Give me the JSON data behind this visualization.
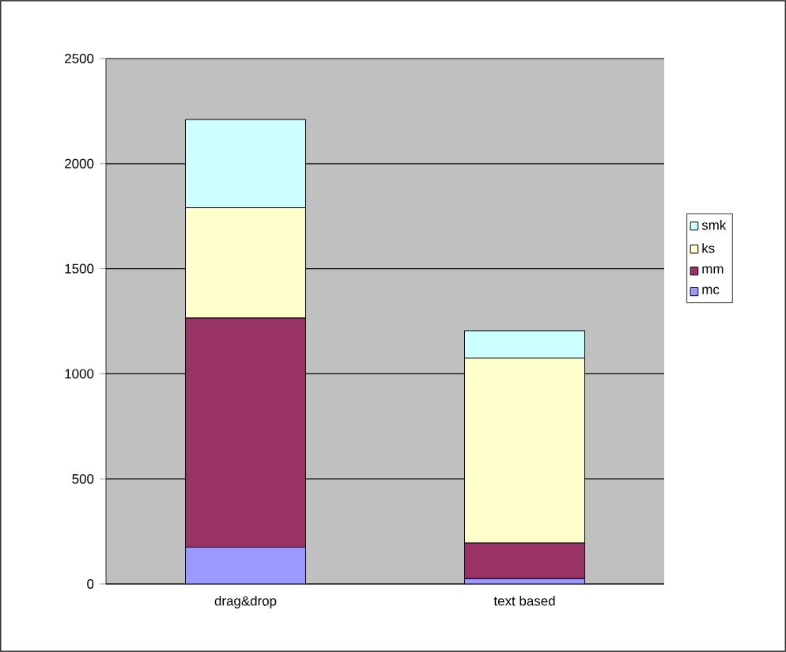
{
  "chart_data": {
    "type": "bar",
    "stacked": true,
    "categories": [
      "drag&drop",
      "text based"
    ],
    "series": [
      {
        "name": "mc",
        "color": "#9999ff",
        "values": [
          175,
          25
        ]
      },
      {
        "name": "mm",
        "color": "#993366",
        "values": [
          1090,
          170
        ]
      },
      {
        "name": "ks",
        "color": "#ffffcc",
        "values": [
          525,
          880
        ]
      },
      {
        "name": "smk",
        "color": "#ccffff",
        "values": [
          420,
          130
        ]
      }
    ],
    "ylim": [
      0,
      2500
    ],
    "yticks": [
      0,
      500,
      1000,
      1500,
      2000,
      2500
    ],
    "grid": "y",
    "legend": "right"
  }
}
